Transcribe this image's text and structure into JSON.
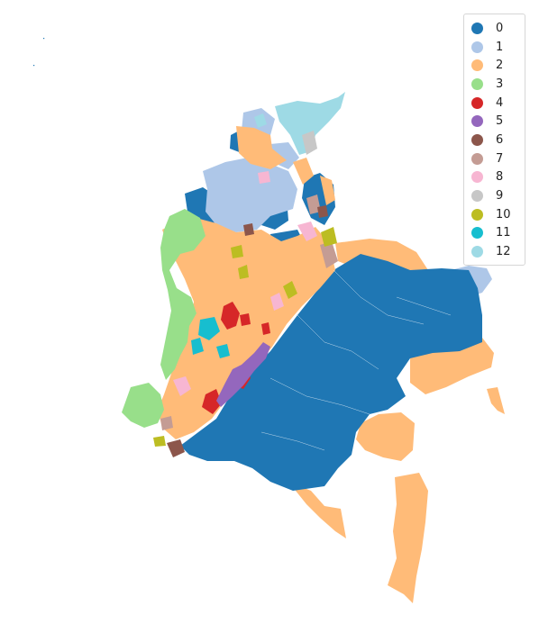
{
  "legend": {
    "items": [
      {
        "label": "0",
        "color": "#1f77b4"
      },
      {
        "label": "1",
        "color": "#aec7e8"
      },
      {
        "label": "2",
        "color": "#ffbb78"
      },
      {
        "label": "3",
        "color": "#98df8a"
      },
      {
        "label": "4",
        "color": "#d62728"
      },
      {
        "label": "5",
        "color": "#9467bd"
      },
      {
        "label": "6",
        "color": "#8c564b"
      },
      {
        "label": "7",
        "color": "#c49c94"
      },
      {
        "label": "8",
        "color": "#f7b6d2"
      },
      {
        "label": "9",
        "color": "#c7c7c7"
      },
      {
        "label": "10",
        "color": "#bcbd22"
      },
      {
        "label": "11",
        "color": "#17becf"
      },
      {
        "label": "12",
        "color": "#9edae5"
      }
    ]
  }
}
